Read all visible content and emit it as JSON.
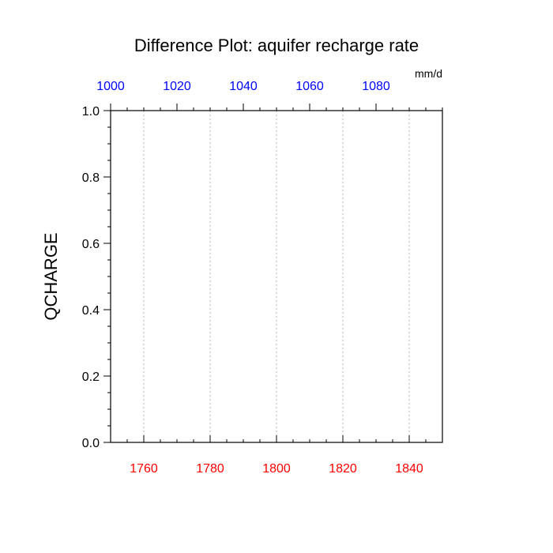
{
  "chart_data": {
    "type": "line",
    "title": "Difference Plot: aquifer recharge rate",
    "ylabel": "QCHARGE",
    "xlabel": "",
    "units": "mm/d",
    "grid": "vertical-dotted",
    "bottom_axis": {
      "range": [
        1750,
        1850
      ],
      "ticks": [
        1760,
        1780,
        1800,
        1820,
        1840
      ],
      "minor_step": 5,
      "color": "#ff0000"
    },
    "top_axis": {
      "range": [
        1000,
        1100
      ],
      "ticks": [
        1000,
        1020,
        1040,
        1060,
        1080
      ],
      "minor_step": 5,
      "color": "#0000ff"
    },
    "left_axis": {
      "range": [
        0.0,
        1.0
      ],
      "ticks": [
        "0.0",
        "0.2",
        "0.4",
        "0.6",
        "0.8",
        "1.0"
      ],
      "minor_step": 0.05
    },
    "series": []
  }
}
